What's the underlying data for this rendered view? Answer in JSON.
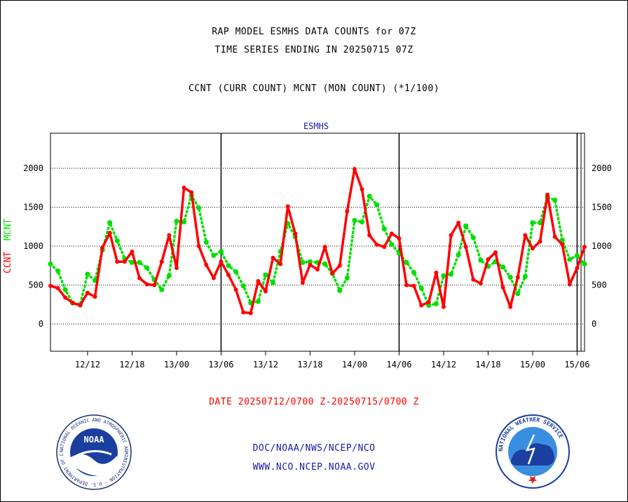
{
  "title_line1": "RAP MODEL ESMHS DATA COUNTS for 07Z",
  "title_line2": "TIME SERIES ENDING IN 20250715 07Z",
  "subtitle": "CCNT (CURR COUNT) MCNT (MON COUNT) (*1/100)",
  "plot_label": "ESMHS",
  "ylabel_ccnt": "CCNT",
  "ylabel_mcnt": "MCNT",
  "date_range": "DATE 20250712/0700 Z-20250715/0700 Z",
  "footer_line1": "DOC/NOAA/NWS/NCEP/NCO",
  "footer_line2": "WWW.NCO.NCEP.NOAA.GOV",
  "noaa_logo": {
    "name": "noaa-logo",
    "text": "NOAA",
    "ring_text": "NATIONAL OCEANIC AND ATMOSPHERIC ADMINISTRATION · U.S. DEPARTMENT OF COMMERCE"
  },
  "nws_logo": {
    "name": "nws-logo",
    "ring_text": "NATIONAL WEATHER SERVICE"
  },
  "colors": {
    "ccnt": "#ff0000",
    "mcnt": "#00e000",
    "text_blue": "#1a1aa6",
    "axis": "#000000"
  },
  "chart_data": {
    "type": "line",
    "x_unit": "hours since 20250712/0700 Z",
    "xlim": [
      0,
      72
    ],
    "ylim": [
      -350,
      2450
    ],
    "yticks": [
      0,
      500,
      1000,
      1500,
      2000
    ],
    "xticks": [
      {
        "x": 5,
        "label": "12/12"
      },
      {
        "x": 11,
        "label": "12/18"
      },
      {
        "x": 17,
        "label": "13/00"
      },
      {
        "x": 23,
        "label": "13/06"
      },
      {
        "x": 29,
        "label": "13/12"
      },
      {
        "x": 35,
        "label": "13/18"
      },
      {
        "x": 41,
        "label": "14/00"
      },
      {
        "x": 47,
        "label": "14/06"
      },
      {
        "x": 53,
        "label": "14/12"
      },
      {
        "x": 59,
        "label": "14/18"
      },
      {
        "x": 65,
        "label": "15/00"
      },
      {
        "x": 71,
        "label": "15/06"
      }
    ],
    "day_boundaries": [
      23,
      47,
      71
    ],
    "grid": "horizontal dotted",
    "series": [
      {
        "name": "CCNT",
        "style": "solid",
        "values": [
          490,
          460,
          340,
          270,
          240,
          400,
          350,
          980,
          1170,
          800,
          800,
          930,
          590,
          510,
          500,
          800,
          1140,
          720,
          1750,
          1690,
          1000,
          760,
          590,
          800,
          630,
          440,
          150,
          140,
          550,
          420,
          850,
          770,
          1510,
          1160,
          530,
          760,
          700,
          990,
          650,
          750,
          1450,
          1990,
          1730,
          1140,
          1020,
          990,
          1160,
          1100,
          500,
          490,
          240,
          280,
          660,
          220,
          1140,
          1300,
          990,
          570,
          520,
          830,
          920,
          470,
          220,
          600,
          1140,
          970,
          1060,
          1660,
          1120,
          1020,
          510,
          720,
          990
        ]
      },
      {
        "name": "MCNT",
        "style": "dotted",
        "values": [
          770,
          680,
          440,
          270,
          250,
          640,
          560,
          950,
          1300,
          1070,
          840,
          790,
          790,
          720,
          570,
          440,
          620,
          1320,
          1310,
          1650,
          1490,
          1050,
          880,
          930,
          750,
          670,
          490,
          270,
          290,
          630,
          530,
          930,
          1290,
          1120,
          790,
          800,
          790,
          770,
          650,
          430,
          590,
          1330,
          1310,
          1640,
          1530,
          1220,
          1020,
          910,
          790,
          660,
          460,
          240,
          260,
          620,
          640,
          890,
          1260,
          1110,
          820,
          740,
          800,
          730,
          600,
          390,
          610,
          1300,
          1300,
          1630,
          1590,
          1080,
          830,
          880,
          770
        ]
      }
    ]
  }
}
